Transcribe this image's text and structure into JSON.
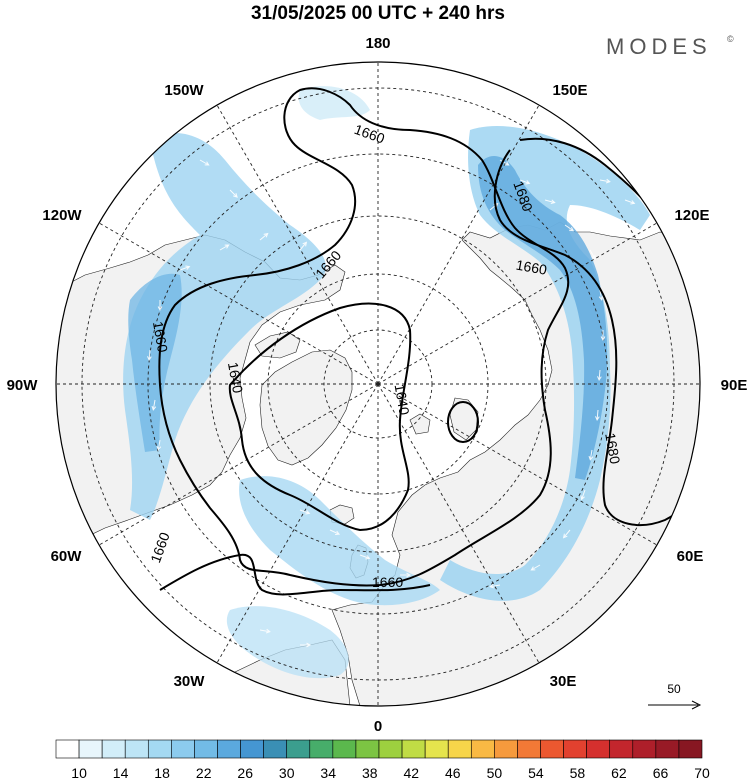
{
  "title": "31/05/2025  00 UTC  + 240 hrs",
  "brand": "MODES",
  "brand_mark": "©",
  "map": {
    "projection": "north-polar-stereographic",
    "longitude_labels": [
      {
        "text": "180",
        "lon": 180
      },
      {
        "text": "150E",
        "lon": 150
      },
      {
        "text": "120E",
        "lon": 120
      },
      {
        "text": "90E",
        "lon": 90
      },
      {
        "text": "60E",
        "lon": 60
      },
      {
        "text": "30E",
        "lon": 30
      },
      {
        "text": "0",
        "lon": 0
      },
      {
        "text": "30W",
        "lon": -30
      },
      {
        "text": "60W",
        "lon": -60
      },
      {
        "text": "90W",
        "lon": -90
      },
      {
        "text": "120W",
        "lon": -120
      },
      {
        "text": "150W",
        "lon": -150
      }
    ],
    "contour_labels": [
      "1660",
      "1680",
      "1660",
      "1660",
      "1640",
      "1640",
      "1680",
      "1660",
      "1660"
    ],
    "land_color": "#f2f2f2",
    "ocean_color": "#ffffff"
  },
  "vector_scale": {
    "label": "50"
  },
  "colorbar": {
    "labels": [
      "10",
      "14",
      "18",
      "22",
      "26",
      "30",
      "34",
      "38",
      "42",
      "46",
      "50",
      "54",
      "58",
      "62",
      "66",
      "70"
    ],
    "colors": [
      "#ffffff",
      "#e8f6fc",
      "#d2eef9",
      "#bde5f6",
      "#a4d9f2",
      "#8ccbee",
      "#72bbe6",
      "#5ba9de",
      "#4596d2",
      "#3a8fb5",
      "#3b9e8e",
      "#47ad6a",
      "#5bb84d",
      "#7cc443",
      "#9dd03f",
      "#c0dc45",
      "#e5e44d",
      "#f7d54a",
      "#f9b944",
      "#f69a3d",
      "#f27936",
      "#ec5830",
      "#e2412f",
      "#d5302e",
      "#c3262d",
      "#ae1f2a",
      "#981a26",
      "#871722"
    ]
  }
}
